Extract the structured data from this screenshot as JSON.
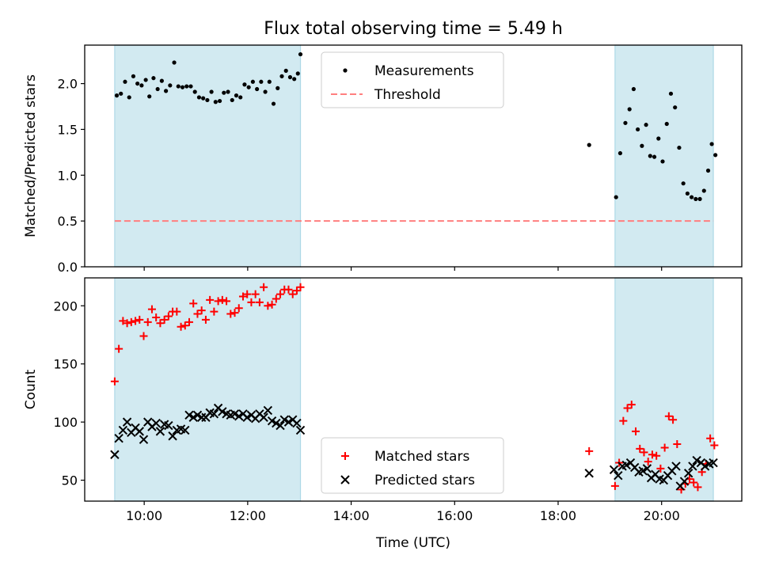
{
  "chart_data": {
    "title": "Flux total observing time = 5.49 h",
    "xlabel": "Time (UTC)",
    "x_unit": "hours UTC",
    "xlim": [
      8.85,
      21.55
    ],
    "x_ticks": [
      {
        "value": 10,
        "label": "10:00"
      },
      {
        "value": 12,
        "label": "12:00"
      },
      {
        "value": 14,
        "label": "14:00"
      },
      {
        "value": 16,
        "label": "16:00"
      },
      {
        "value": 18,
        "label": "18:00"
      },
      {
        "value": 20,
        "label": "20:00"
      }
    ],
    "observing_windows": [
      [
        9.43,
        13.02
      ],
      [
        19.1,
        21.0
      ]
    ],
    "colors": {
      "window": "#add8e6",
      "matched": "#ff0000",
      "predicted": "#000000",
      "threshold": "#ff7f7f",
      "measurements": "#000000"
    },
    "panels": [
      {
        "type": "scatter",
        "ylabel": "Matched/Predicted stars",
        "ylim": [
          0.0,
          2.42
        ],
        "y_ticks": [
          {
            "value": 0.0,
            "label": "0.0"
          },
          {
            "value": 0.5,
            "label": "0.5"
          },
          {
            "value": 1.0,
            "label": "1.0"
          },
          {
            "value": 1.5,
            "label": "1.5"
          },
          {
            "value": 2.0,
            "label": "2.0"
          }
        ],
        "legend": {
          "placement": "upper center",
          "entries": [
            "Measurements",
            "Threshold"
          ]
        },
        "threshold": {
          "name": "Threshold",
          "y": 0.5,
          "x_range": [
            9.43,
            21.0
          ]
        },
        "series": [
          {
            "name": "Measurements",
            "marker": "dot",
            "points": [
              [
                9.47,
                1.87
              ],
              [
                9.55,
                1.89
              ],
              [
                9.63,
                2.02
              ],
              [
                9.71,
                1.85
              ],
              [
                9.79,
                2.08
              ],
              [
                9.87,
                2.0
              ],
              [
                9.95,
                1.98
              ],
              [
                10.03,
                2.04
              ],
              [
                10.1,
                1.86
              ],
              [
                10.18,
                2.06
              ],
              [
                10.26,
                1.94
              ],
              [
                10.34,
                2.03
              ],
              [
                10.42,
                1.92
              ],
              [
                10.5,
                1.98
              ],
              [
                10.58,
                2.23
              ],
              [
                10.66,
                1.97
              ],
              [
                10.74,
                1.96
              ],
              [
                10.82,
                1.97
              ],
              [
                10.9,
                1.97
              ],
              [
                10.98,
                1.91
              ],
              [
                11.06,
                1.85
              ],
              [
                11.14,
                1.84
              ],
              [
                11.22,
                1.82
              ],
              [
                11.3,
                1.91
              ],
              [
                11.38,
                1.8
              ],
              [
                11.46,
                1.81
              ],
              [
                11.54,
                1.9
              ],
              [
                11.62,
                1.91
              ],
              [
                11.7,
                1.82
              ],
              [
                11.78,
                1.87
              ],
              [
                11.86,
                1.85
              ],
              [
                11.94,
                1.99
              ],
              [
                12.02,
                1.96
              ],
              [
                12.1,
                2.02
              ],
              [
                12.18,
                1.94
              ],
              [
                12.26,
                2.02
              ],
              [
                12.34,
                1.91
              ],
              [
                12.42,
                2.02
              ],
              [
                12.5,
                1.78
              ],
              [
                12.58,
                1.95
              ],
              [
                12.66,
                2.08
              ],
              [
                12.74,
                2.14
              ],
              [
                12.82,
                2.07
              ],
              [
                12.9,
                2.05
              ],
              [
                12.97,
                2.11
              ],
              [
                13.02,
                2.32
              ],
              [
                18.6,
                1.33
              ],
              [
                19.12,
                0.76
              ],
              [
                19.2,
                1.24
              ],
              [
                19.3,
                1.57
              ],
              [
                19.38,
                1.72
              ],
              [
                19.46,
                1.94
              ],
              [
                19.54,
                1.5
              ],
              [
                19.62,
                1.32
              ],
              [
                19.7,
                1.55
              ],
              [
                19.78,
                1.21
              ],
              [
                19.86,
                1.2
              ],
              [
                19.94,
                1.4
              ],
              [
                20.02,
                1.15
              ],
              [
                20.1,
                1.56
              ],
              [
                20.18,
                1.89
              ],
              [
                20.26,
                1.74
              ],
              [
                20.34,
                1.3
              ],
              [
                20.42,
                0.91
              ],
              [
                20.5,
                0.8
              ],
              [
                20.58,
                0.76
              ],
              [
                20.66,
                0.74
              ],
              [
                20.74,
                0.74
              ],
              [
                20.82,
                0.83
              ],
              [
                20.9,
                1.05
              ],
              [
                20.97,
                1.34
              ],
              [
                21.04,
                1.22
              ]
            ]
          }
        ]
      },
      {
        "type": "scatter",
        "ylabel": "Count",
        "ylim": [
          32,
          224
        ],
        "y_ticks": [
          {
            "value": 50,
            "label": "50"
          },
          {
            "value": 100,
            "label": "100"
          },
          {
            "value": 150,
            "label": "150"
          },
          {
            "value": 200,
            "label": "200"
          }
        ],
        "legend": {
          "placement": "lower center",
          "entries": [
            "Matched stars",
            "Predicted stars"
          ]
        },
        "series": [
          {
            "name": "Matched stars",
            "marker": "plus",
            "points": [
              [
                9.43,
                135
              ],
              [
                9.51,
                163
              ],
              [
                9.59,
                187
              ],
              [
                9.67,
                185
              ],
              [
                9.75,
                186
              ],
              [
                9.83,
                187
              ],
              [
                9.91,
                188
              ],
              [
                9.99,
                174
              ],
              [
                10.07,
                186
              ],
              [
                10.15,
                197
              ],
              [
                10.23,
                190
              ],
              [
                10.31,
                185
              ],
              [
                10.39,
                188
              ],
              [
                10.47,
                191
              ],
              [
                10.55,
                195
              ],
              [
                10.63,
                195
              ],
              [
                10.71,
                182
              ],
              [
                10.79,
                183
              ],
              [
                10.87,
                186
              ],
              [
                10.95,
                202
              ],
              [
                11.03,
                193
              ],
              [
                11.11,
                196
              ],
              [
                11.19,
                188
              ],
              [
                11.27,
                205
              ],
              [
                11.35,
                195
              ],
              [
                11.43,
                204
              ],
              [
                11.51,
                205
              ],
              [
                11.59,
                204
              ],
              [
                11.67,
                193
              ],
              [
                11.75,
                194
              ],
              [
                11.83,
                198
              ],
              [
                11.91,
                208
              ],
              [
                11.99,
                210
              ],
              [
                12.07,
                203
              ],
              [
                12.15,
                210
              ],
              [
                12.23,
                203
              ],
              [
                12.31,
                216
              ],
              [
                12.39,
                200
              ],
              [
                12.47,
                201
              ],
              [
                12.55,
                206
              ],
              [
                12.63,
                210
              ],
              [
                12.71,
                214
              ],
              [
                12.79,
                214
              ],
              [
                12.87,
                210
              ],
              [
                12.95,
                213
              ],
              [
                13.02,
                216
              ],
              [
                18.6,
                75
              ],
              [
                19.1,
                45
              ],
              [
                19.18,
                65
              ],
              [
                19.26,
                101
              ],
              [
                19.34,
                112
              ],
              [
                19.42,
                115
              ],
              [
                19.5,
                92
              ],
              [
                19.58,
                77
              ],
              [
                19.66,
                74
              ],
              [
                19.74,
                66
              ],
              [
                19.82,
                72
              ],
              [
                19.9,
                71
              ],
              [
                19.98,
                60
              ],
              [
                20.06,
                78
              ],
              [
                20.14,
                105
              ],
              [
                20.22,
                102
              ],
              [
                20.3,
                81
              ],
              [
                20.38,
                42
              ],
              [
                20.46,
                47
              ],
              [
                20.54,
                51
              ],
              [
                20.62,
                48
              ],
              [
                20.7,
                44
              ],
              [
                20.78,
                57
              ],
              [
                20.86,
                64
              ],
              [
                20.94,
                86
              ],
              [
                21.02,
                80
              ]
            ]
          },
          {
            "name": "Predicted stars",
            "marker": "x",
            "points": [
              [
                9.43,
                72
              ],
              [
                9.51,
                86
              ],
              [
                9.59,
                93
              ],
              [
                9.67,
                100
              ],
              [
                9.75,
                91
              ],
              [
                9.83,
                95
              ],
              [
                9.91,
                92
              ],
              [
                9.99,
                85
              ],
              [
                10.07,
                100
              ],
              [
                10.15,
                96
              ],
              [
                10.23,
                99
              ],
              [
                10.31,
                92
              ],
              [
                10.39,
                98
              ],
              [
                10.47,
                97
              ],
              [
                10.55,
                88
              ],
              [
                10.63,
                93
              ],
              [
                10.71,
                94
              ],
              [
                10.79,
                93
              ],
              [
                10.87,
                106
              ],
              [
                10.95,
                104
              ],
              [
                11.03,
                106
              ],
              [
                11.11,
                104
              ],
              [
                11.19,
                104
              ],
              [
                11.27,
                108
              ],
              [
                11.35,
                107
              ],
              [
                11.43,
                112
              ],
              [
                11.51,
                109
              ],
              [
                11.59,
                107
              ],
              [
                11.67,
                106
              ],
              [
                11.75,
                107
              ],
              [
                11.83,
                105
              ],
              [
                11.91,
                107
              ],
              [
                11.99,
                104
              ],
              [
                12.07,
                106
              ],
              [
                12.15,
                103
              ],
              [
                12.23,
                107
              ],
              [
                12.31,
                104
              ],
              [
                12.39,
                110
              ],
              [
                12.47,
                101
              ],
              [
                12.55,
                99
              ],
              [
                12.63,
                97
              ],
              [
                12.71,
                102
              ],
              [
                12.79,
                100
              ],
              [
                12.87,
                102
              ],
              [
                12.95,
                99
              ],
              [
                13.02,
                93
              ],
              [
                18.6,
                56
              ],
              [
                19.08,
                59
              ],
              [
                19.16,
                54
              ],
              [
                19.24,
                62
              ],
              [
                19.32,
                63
              ],
              [
                19.4,
                65
              ],
              [
                19.48,
                61
              ],
              [
                19.56,
                57
              ],
              [
                19.64,
                58
              ],
              [
                19.72,
                60
              ],
              [
                19.8,
                52
              ],
              [
                19.88,
                55
              ],
              [
                19.96,
                51
              ],
              [
                20.04,
                50
              ],
              [
                20.12,
                54
              ],
              [
                20.2,
                58
              ],
              [
                20.28,
                62
              ],
              [
                20.36,
                45
              ],
              [
                20.44,
                49
              ],
              [
                20.52,
                56
              ],
              [
                20.6,
                62
              ],
              [
                20.68,
                67
              ],
              [
                20.76,
                65
              ],
              [
                20.84,
                62
              ],
              [
                20.92,
                64
              ],
              [
                21.0,
                65
              ]
            ]
          }
        ]
      }
    ]
  }
}
